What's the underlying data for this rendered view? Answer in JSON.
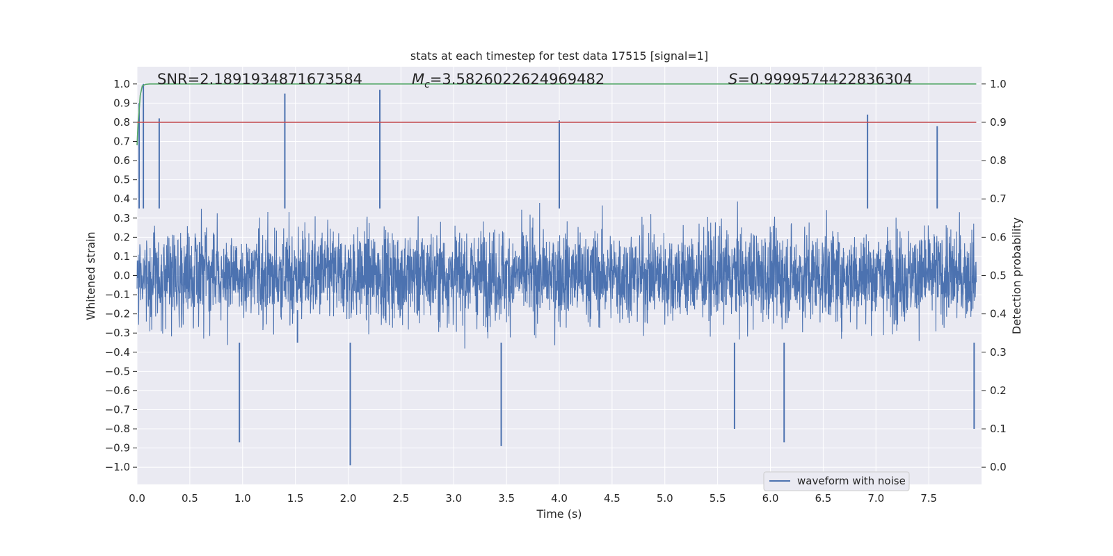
{
  "chart_data": {
    "type": "line",
    "title": "stats at each timestep for test data 17515 [signal=1]",
    "xlabel": "Time (s)",
    "ylabel": "Whitened strain",
    "y2label": "Detection probability",
    "xlim": [
      0.0,
      8.0
    ],
    "ylim": [
      -1.09,
      1.09
    ],
    "y2lim": [
      -0.045,
      1.045
    ],
    "xticks": [
      "0.0",
      "0.5",
      "1.0",
      "1.5",
      "2.0",
      "2.5",
      "3.0",
      "3.5",
      "4.0",
      "4.5",
      "5.0",
      "5.5",
      "6.0",
      "6.5",
      "7.0",
      "7.5"
    ],
    "xtick_values": [
      0.0,
      0.5,
      1.0,
      1.5,
      2.0,
      2.5,
      3.0,
      3.5,
      4.0,
      4.5,
      5.0,
      5.5,
      6.0,
      6.5,
      7.0,
      7.5
    ],
    "yticks": [
      "1.0",
      "0.9",
      "0.8",
      "0.7",
      "0.6",
      "0.5",
      "0.4",
      "0.3",
      "0.2",
      "0.1",
      "0.0",
      "−0.1",
      "−0.2",
      "−0.3",
      "−0.4",
      "−0.5",
      "−0.6",
      "−0.7",
      "−0.8",
      "−0.9",
      "−1.0"
    ],
    "ytick_values": [
      1.0,
      0.9,
      0.8,
      0.7,
      0.6,
      0.5,
      0.4,
      0.3,
      0.2,
      0.1,
      0.0,
      -0.1,
      -0.2,
      -0.3,
      -0.4,
      -0.5,
      -0.6,
      -0.7,
      -0.8,
      -0.9,
      -1.0
    ],
    "y2ticks": [
      "1.0",
      "0.9",
      "0.8",
      "0.7",
      "0.6",
      "0.5",
      "0.4",
      "0.3",
      "0.2",
      "0.1",
      "0.0"
    ],
    "y2tick_values": [
      1.0,
      0.9,
      0.8,
      0.7,
      0.6,
      0.5,
      0.4,
      0.3,
      0.2,
      0.1,
      0.0
    ],
    "annotations": {
      "snr": "SNR=2.1891934871673584",
      "mc_symbol": "M",
      "mc_sub": "c",
      "mc_value": "=3.5826022624969482",
      "s_symbol": "S",
      "s_value": "=0.9999574422836304"
    },
    "legend": {
      "label": "waveform with noise",
      "position": "lower-right"
    },
    "series": [
      {
        "name": "waveform with noise",
        "axis": "left",
        "color": "#4c72b0",
        "kind": "noise",
        "duration": 7.95,
        "typical_band": [
          -0.4,
          0.4
        ],
        "peaks": [
          [
            0.02,
            0.9
          ],
          [
            0.06,
            1.0
          ],
          [
            0.21,
            0.82
          ],
          [
            1.4,
            0.95
          ],
          [
            2.3,
            0.97
          ],
          [
            4.0,
            0.81
          ],
          [
            6.92,
            0.84
          ],
          [
            7.58,
            0.78
          ],
          [
            0.97,
            -0.87
          ],
          [
            2.02,
            -0.99
          ],
          [
            3.45,
            -0.89
          ],
          [
            1.52,
            -0.18
          ],
          [
            6.13,
            -0.87
          ],
          [
            7.93,
            -0.8
          ],
          [
            5.66,
            -0.8
          ]
        ]
      },
      {
        "name": "detection probability",
        "axis": "right",
        "color": "#55a868",
        "kind": "step",
        "x": [
          0.0,
          0.01,
          0.02,
          0.03,
          0.05,
          0.08,
          0.12,
          0.2,
          7.95
        ],
        "values": [
          0.84,
          0.9,
          0.93,
          0.97,
          0.995,
          0.999,
          1.0,
          1.0,
          1.0
        ]
      },
      {
        "name": "threshold",
        "axis": "right",
        "color": "#c44e52",
        "kind": "hline",
        "value": 0.9
      }
    ],
    "colors": {
      "plot_bg": "#eaeaf2",
      "grid": "#ffffff",
      "text": "#262626"
    }
  }
}
